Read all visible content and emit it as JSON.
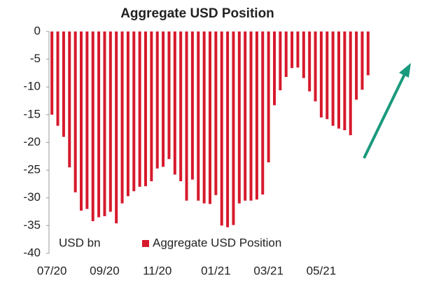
{
  "chart_data": {
    "type": "bar",
    "title": "Aggregate USD Position",
    "axis_label": "USD bn",
    "categories": [
      "07/20",
      null,
      null,
      null,
      null,
      null,
      null,
      null,
      null,
      "09/20",
      null,
      null,
      null,
      null,
      null,
      null,
      null,
      null,
      "11/20",
      null,
      null,
      null,
      null,
      null,
      null,
      null,
      null,
      null,
      "01/21",
      null,
      null,
      null,
      null,
      null,
      null,
      null,
      null,
      "03/21",
      null,
      null,
      null,
      null,
      null,
      null,
      null,
      null,
      "05/21",
      null,
      null,
      null,
      null,
      null,
      null,
      null,
      null
    ],
    "series": [
      {
        "name": "Aggregate USD Position",
        "color": "#d7192c",
        "values": [
          -15,
          -17,
          -19,
          -24.5,
          -29,
          -32.3,
          -32,
          -34.2,
          -33.5,
          -33.3,
          -32.5,
          -34.6,
          -31,
          -29.7,
          -28.8,
          -28,
          -27.9,
          -27,
          -24.7,
          -24.4,
          -23,
          -25.8,
          -27,
          -30.5,
          -26.7,
          -30.5,
          -31,
          -31.1,
          -29.5,
          -35,
          -35.3,
          -34.9,
          -31,
          -30.5,
          -30.5,
          -30.3,
          -29.4,
          -23.6,
          -13.3,
          -10.6,
          -8.2,
          -6.6,
          -6.5,
          -8.4,
          -10.8,
          -12.6,
          -15.5,
          -15.8,
          -17,
          -17.5,
          -17.8,
          -18.7,
          -12.3,
          -10.5,
          -7.9
        ]
      }
    ],
    "ylim": [
      -40,
      0
    ],
    "yticks": [
      0,
      -5,
      -10,
      -15,
      -20,
      -25,
      -30,
      -35,
      -40
    ]
  }
}
